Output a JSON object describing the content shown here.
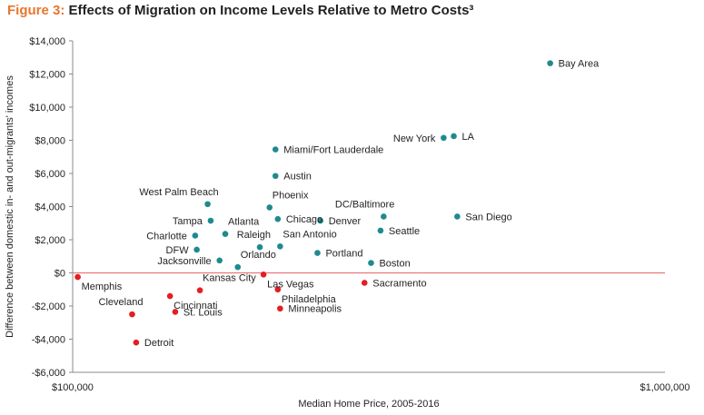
{
  "title": {
    "prefix": "Figure 3:",
    "text": " Effects of Migration on Income Levels Relative to Metro Costs³"
  },
  "colors": {
    "positive": "#1f8a8e",
    "negative": "#e31e24",
    "zero_line": "#e8797b",
    "title_accent": "#e8762c"
  },
  "chart_data": {
    "type": "scatter",
    "xlabel": "Median Home Price, 2005-2016",
    "ylabel": "Difference between domestic in- and out-migrants' incomes",
    "xscale": "log",
    "xlim": [
      100000,
      1000000
    ],
    "ylim": [
      -6000,
      14000
    ],
    "xticks": [
      {
        "value": 100000,
        "label": "$100,000"
      },
      {
        "value": 1000000,
        "label": "$1,000,000"
      }
    ],
    "yticks": [
      {
        "value": 14000,
        "label": "$14,000"
      },
      {
        "value": 12000,
        "label": "$12,000"
      },
      {
        "value": 10000,
        "label": "$10,000"
      },
      {
        "value": 8000,
        "label": "$8,000"
      },
      {
        "value": 6000,
        "label": "$6,000"
      },
      {
        "value": 4000,
        "label": "$4,000"
      },
      {
        "value": 2000,
        "label": "$2,000"
      },
      {
        "value": 0,
        "label": "$0"
      },
      {
        "value": -2000,
        "label": "-$2,000"
      },
      {
        "value": -4000,
        "label": "-$4,000"
      },
      {
        "value": -6000,
        "label": "-$6,000"
      }
    ],
    "grid": false,
    "points": [
      {
        "name": "Bay Area",
        "x": 640000,
        "y": 12650,
        "label_side": "right"
      },
      {
        "name": "New York",
        "x": 423000,
        "y": 8150,
        "label_side": "left"
      },
      {
        "name": "LA",
        "x": 440000,
        "y": 8250,
        "label_side": "right"
      },
      {
        "name": "Miami/Fort Lauderdale",
        "x": 220000,
        "y": 7450,
        "label_side": "right"
      },
      {
        "name": "Austin",
        "x": 220000,
        "y": 5850,
        "label_side": "right"
      },
      {
        "name": "West Palm Beach",
        "x": 169000,
        "y": 4150,
        "label_side": "above-left"
      },
      {
        "name": "Phoenix",
        "x": 215000,
        "y": 3950,
        "label_side": "above-right"
      },
      {
        "name": "Chicago",
        "x": 222000,
        "y": 3250,
        "label_side": "right"
      },
      {
        "name": "Tampa",
        "x": 171000,
        "y": 3150,
        "label_side": "left"
      },
      {
        "name": "Denver",
        "x": 262000,
        "y": 3150,
        "label_side": "right"
      },
      {
        "name": "DC/Baltimore",
        "x": 335000,
        "y": 3400,
        "label_side": "above-left"
      },
      {
        "name": "San Diego",
        "x": 446000,
        "y": 3400,
        "label_side": "right"
      },
      {
        "name": "Atlanta",
        "x": 181000,
        "y": 2350,
        "label_side": "above-right"
      },
      {
        "name": "Charlotte",
        "x": 161000,
        "y": 2250,
        "label_side": "left"
      },
      {
        "name": "Seattle",
        "x": 331000,
        "y": 2550,
        "label_side": "right"
      },
      {
        "name": "Raleigh",
        "x": 207000,
        "y": 1550,
        "label_side": "above-left"
      },
      {
        "name": "San Antonio",
        "x": 224000,
        "y": 1600,
        "label_side": "above-right"
      },
      {
        "name": "DFW",
        "x": 162000,
        "y": 1400,
        "label_side": "left"
      },
      {
        "name": "Portland",
        "x": 259000,
        "y": 1200,
        "label_side": "right"
      },
      {
        "name": "Jacksonville",
        "x": 177000,
        "y": 750,
        "label_side": "left"
      },
      {
        "name": "Orlando",
        "x": 190000,
        "y": 350,
        "label_side": "above-right"
      },
      {
        "name": "Boston",
        "x": 319000,
        "y": 600,
        "label_side": "right"
      },
      {
        "name": "Memphis",
        "x": 102000,
        "y": -250,
        "label_side": "below-right"
      },
      {
        "name": "Las Vegas",
        "x": 210000,
        "y": -100,
        "label_side": "below-right"
      },
      {
        "name": "Sacramento",
        "x": 311000,
        "y": -600,
        "label_side": "right"
      },
      {
        "name": "Kansas City",
        "x": 164000,
        "y": -1050,
        "label_side": "above-right"
      },
      {
        "name": "Philadelphia",
        "x": 222000,
        "y": -1000,
        "label_side": "below-right"
      },
      {
        "name": "Cincinnati",
        "x": 146000,
        "y": -1400,
        "label_side": "below-right"
      },
      {
        "name": "Cleveland",
        "x": 126000,
        "y": -2500,
        "label_side": "above-left"
      },
      {
        "name": "St. Louis",
        "x": 149000,
        "y": -2350,
        "label_side": "right"
      },
      {
        "name": "Minneapolis",
        "x": 224000,
        "y": -2150,
        "label_side": "right"
      },
      {
        "name": "Detroit",
        "x": 128000,
        "y": -4200,
        "label_side": "right"
      }
    ]
  }
}
